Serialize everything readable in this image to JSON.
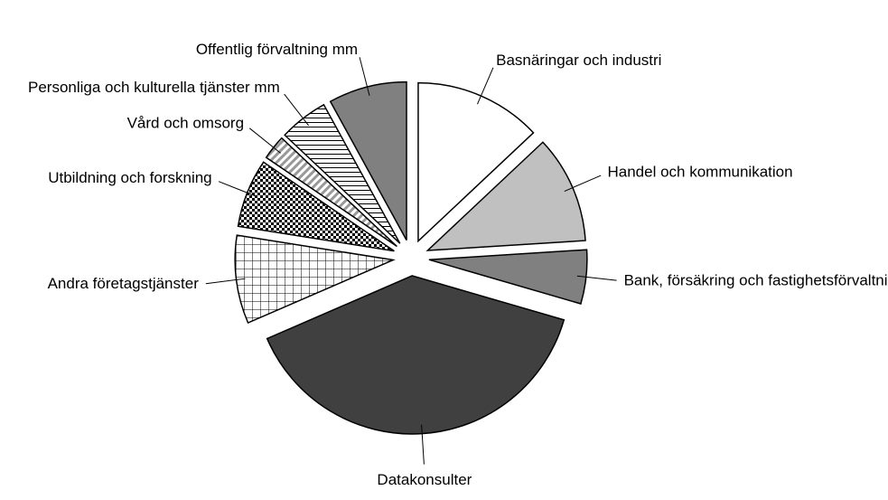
{
  "chart_data": {
    "type": "pie",
    "categories": [
      "Basnäringar och industri",
      "Handel och kommunikation",
      "Bank, försäkring och fastighetsförvaltning",
      "Datakonsulter",
      "Andra företagstjänster",
      "Utbildning och forskning",
      "Vård och omsorg",
      "Personliga och kulturella tjänster mm",
      "Offentlig förvaltning mm"
    ],
    "values": [
      13,
      11,
      5.5,
      39,
      9,
      7,
      2.5,
      5,
      8
    ],
    "colors": [
      "#ffffff",
      "#c0c0c0",
      "#808080",
      "#404040",
      "#ffffff",
      "#ffffff",
      "#ffffff",
      "#ffffff",
      "#808080"
    ],
    "patterns": [
      "none",
      "none",
      "none",
      "none",
      "grid",
      "checker",
      "diagonal",
      "horizontal",
      "none"
    ],
    "start_angle": 0,
    "direction": "clockwise",
    "exploded": true
  }
}
